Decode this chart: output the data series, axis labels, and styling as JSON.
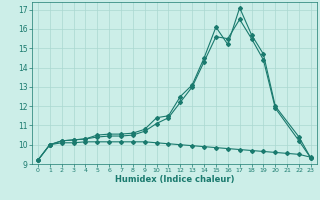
{
  "xlabel": "Humidex (Indice chaleur)",
  "background_color": "#cceee8",
  "grid_color": "#aad8d0",
  "line_color": "#1a7a6e",
  "xlim": [
    -0.5,
    23.5
  ],
  "ylim": [
    9,
    17.4
  ],
  "x_ticks": [
    0,
    1,
    2,
    3,
    4,
    5,
    6,
    7,
    8,
    9,
    10,
    11,
    12,
    13,
    14,
    15,
    16,
    17,
    18,
    19,
    20,
    21,
    22,
    23
  ],
  "y_ticks": [
    9,
    10,
    11,
    12,
    13,
    14,
    15,
    16,
    17
  ],
  "series1_x": [
    0,
    1,
    2,
    3,
    4,
    5,
    6,
    7,
    8,
    9,
    10,
    11,
    12,
    13,
    14,
    15,
    16,
    17,
    18,
    19,
    20,
    22,
    23
  ],
  "series1_y": [
    9.2,
    10.0,
    10.2,
    10.25,
    10.3,
    10.5,
    10.55,
    10.55,
    10.6,
    10.8,
    11.4,
    11.5,
    12.5,
    13.1,
    14.5,
    16.1,
    15.2,
    17.1,
    15.7,
    14.7,
    12.0,
    10.4,
    9.3
  ],
  "series2_x": [
    0,
    1,
    2,
    3,
    4,
    5,
    6,
    7,
    8,
    9,
    10,
    11,
    12,
    13,
    14,
    15,
    16,
    17,
    18,
    19,
    20,
    22,
    23
  ],
  "series2_y": [
    9.2,
    10.0,
    10.2,
    10.25,
    10.3,
    10.4,
    10.45,
    10.45,
    10.5,
    10.7,
    11.1,
    11.4,
    12.2,
    13.0,
    14.3,
    15.6,
    15.5,
    16.5,
    15.5,
    14.4,
    11.9,
    10.2,
    9.3
  ],
  "series3_x": [
    0,
    1,
    2,
    3,
    4,
    5,
    6,
    7,
    8,
    9,
    10,
    11,
    12,
    13,
    14,
    15,
    16,
    17,
    18,
    19,
    20,
    21,
    22,
    23
  ],
  "series3_y": [
    9.2,
    10.0,
    10.1,
    10.1,
    10.15,
    10.15,
    10.15,
    10.15,
    10.15,
    10.15,
    10.1,
    10.05,
    10.0,
    9.95,
    9.9,
    9.85,
    9.8,
    9.75,
    9.7,
    9.65,
    9.6,
    9.55,
    9.5,
    9.35
  ]
}
